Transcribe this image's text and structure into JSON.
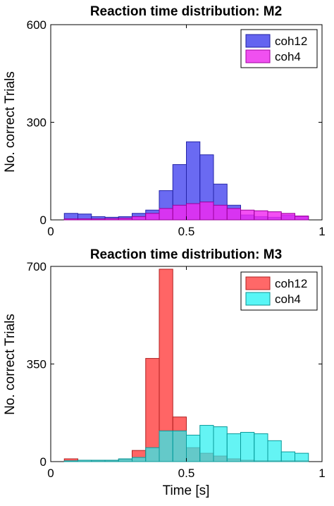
{
  "chart_data": [
    {
      "type": "bar",
      "title": "Reaction time distribution: M2",
      "xlabel": "",
      "ylabel": "No. correct Trials",
      "xlim": [
        0,
        1
      ],
      "ylim": [
        0,
        600
      ],
      "xticks": [
        "0",
        "0.5",
        "1"
      ],
      "yticks": [
        "0",
        "300",
        "600"
      ],
      "legend_position": "top-right",
      "bin_edges": [
        0.05,
        0.1,
        0.15,
        0.2,
        0.25,
        0.3,
        0.35,
        0.4,
        0.45,
        0.5,
        0.55,
        0.6,
        0.65,
        0.7,
        0.75,
        0.8,
        0.85,
        0.9,
        0.95
      ],
      "series": [
        {
          "name": "coh12",
          "color": "#4444ee",
          "values": [
            20,
            18,
            10,
            8,
            10,
            20,
            30,
            90,
            170,
            240,
            200,
            110,
            45,
            15,
            10,
            8,
            15,
            10
          ]
        },
        {
          "name": "coh4",
          "color": "#ff00ff",
          "values": [
            3,
            3,
            3,
            4,
            5,
            10,
            20,
            35,
            45,
            50,
            55,
            45,
            35,
            30,
            28,
            25,
            20,
            12
          ]
        }
      ]
    },
    {
      "type": "bar",
      "title": "Reaction time distribution: M3",
      "xlabel": "Time [s]",
      "ylabel": "No. correct Trials",
      "xlim": [
        0,
        1
      ],
      "ylim": [
        0,
        700
      ],
      "xticks": [
        "0",
        "0.5",
        "1"
      ],
      "yticks": [
        "0",
        "350",
        "700"
      ],
      "legend_position": "top-right",
      "bin_edges": [
        0.05,
        0.1,
        0.15,
        0.2,
        0.25,
        0.3,
        0.35,
        0.4,
        0.45,
        0.5,
        0.55,
        0.6,
        0.65,
        0.7,
        0.75,
        0.8,
        0.85,
        0.9,
        0.95
      ],
      "series": [
        {
          "name": "coh12",
          "color": "#ff4444",
          "values": [
            10,
            5,
            3,
            3,
            8,
            40,
            370,
            690,
            160,
            50,
            30,
            20,
            10,
            5,
            3,
            3,
            3,
            3
          ]
        },
        {
          "name": "coh4",
          "color": "#00ffff",
          "values": [
            3,
            5,
            5,
            5,
            10,
            15,
            50,
            110,
            110,
            95,
            130,
            125,
            100,
            105,
            100,
            75,
            35,
            30
          ]
        }
      ]
    }
  ],
  "subplots": [
    {
      "dummy": 0
    },
    {
      "dummy": 1
    }
  ]
}
